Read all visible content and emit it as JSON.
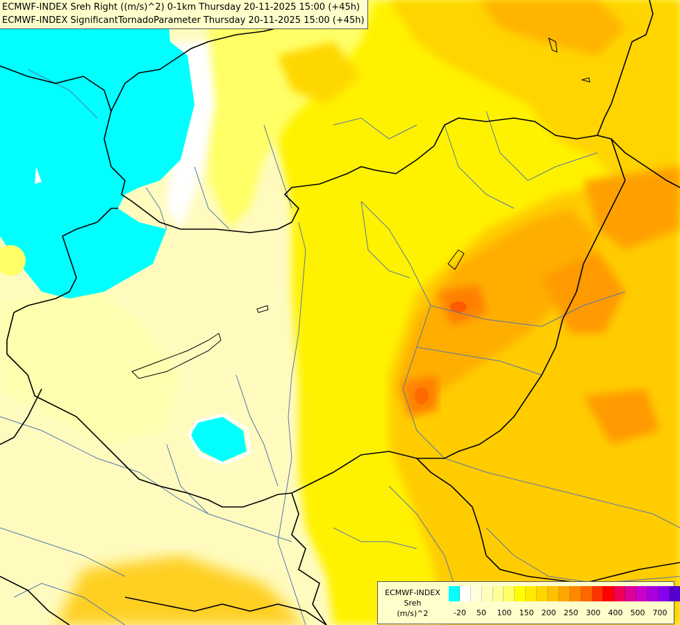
{
  "title": {
    "line1": "ECMWF-INDEX Sreh Right ((m/s)^2) 0-1km Thursday 20-11-2025 15:00 (+45h)",
    "line2": "ECMWF-INDEX SignificantTornadoParameter Thursday 20-11-2025 15:00 (+45h)"
  },
  "legend": {
    "model": "ECMWF-INDEX",
    "param": "Sreh",
    "unit": "(m/s)^2",
    "colors": [
      "#00ffff",
      "#ffffff",
      "#ffffdd",
      "#ffffbb",
      "#ffff99",
      "#ffff66",
      "#ffff00",
      "#ffea00",
      "#ffd500",
      "#ffc000",
      "#ffa500",
      "#ff8800",
      "#ff6600",
      "#ff3300",
      "#ff0000",
      "#ee0055",
      "#dd0099",
      "#cc00cc",
      "#aa00dd",
      "#8800ee",
      "#5500cc",
      "#220099"
    ],
    "ticks": [
      "-20",
      "50",
      "100",
      "150",
      "200",
      "250",
      "300",
      "400",
      "500",
      "700"
    ]
  },
  "colors": {
    "cyan": "#00ffff",
    "white": "#ffffff",
    "pale": "#ffffcc",
    "yellow": "#ffff00",
    "gold": "#ffdd00",
    "orange": "#ffbb00",
    "dark_orange": "#ff8800",
    "red_orange": "#ff5500"
  }
}
